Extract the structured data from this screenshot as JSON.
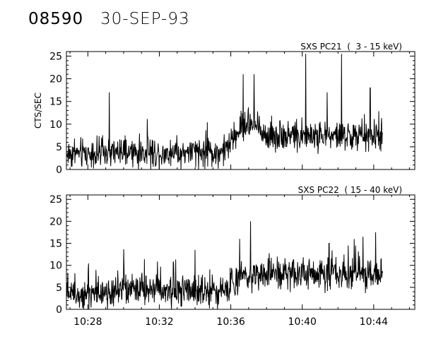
{
  "header": {
    "observation_id": "08590",
    "date": "30-SEP-93"
  },
  "axis_color": "#000000",
  "chart_data": [
    {
      "type": "line",
      "title": "SXS PC21  (  3 - 15 keV)",
      "ylabel": "CTS/SEC",
      "ylim": [
        0,
        26
      ],
      "yticks": [
        "0",
        "5",
        "10",
        "15",
        "20",
        "25"
      ],
      "x_start": "10:26.8",
      "x_end": "10:44.5",
      "xlim": [
        "10:26.8",
        "10:46.3"
      ],
      "xticks": [],
      "grid": false,
      "profile": [
        {
          "t": "10:26.8",
          "level": 3.5
        },
        {
          "t": "10:35.6",
          "level": 3.8
        },
        {
          "t": "10:36.6",
          "level": 9.5
        },
        {
          "t": "10:37.2",
          "level": 10.0
        },
        {
          "t": "10:38.0",
          "level": 7.5
        },
        {
          "t": "10:44.5",
          "level": 7.3
        }
      ],
      "noise": 2.3,
      "spikes": [
        {
          "t": "10:29.2",
          "value": 17
        },
        {
          "t": "10:36.7",
          "value": 21
        },
        {
          "t": "10:37.3",
          "value": 21
        },
        {
          "t": "10:40.2",
          "value": 25.5
        },
        {
          "t": "10:41.4",
          "value": 17
        },
        {
          "t": "10:42.2",
          "value": 25.5
        },
        {
          "t": "10:43.8",
          "value": 18
        }
      ]
    },
    {
      "type": "line",
      "title": "SXS PC22  ( 15 - 40 keV)",
      "ylabel": "",
      "ylim": [
        0,
        26
      ],
      "yticks": [
        "0",
        "5",
        "10",
        "15",
        "20",
        "25"
      ],
      "x_start": "10:26.8",
      "x_end": "10:44.5",
      "xlim": [
        "10:26.8",
        "10:46.3"
      ],
      "xticks": [
        "10:28",
        "10:32",
        "10:36",
        "10:40",
        "10:44"
      ],
      "grid": false,
      "profile": [
        {
          "t": "10:26.8",
          "level": 4.0
        },
        {
          "t": "10:35.8",
          "level": 4.5
        },
        {
          "t": "10:36.7",
          "level": 8.0
        },
        {
          "t": "10:44.5",
          "level": 8.2
        }
      ],
      "noise": 2.6,
      "spikes": [
        {
          "t": "10:36.5",
          "value": 16
        },
        {
          "t": "10:37.1",
          "value": 20
        },
        {
          "t": "10:41.5",
          "value": 15
        },
        {
          "t": "10:43.4",
          "value": 16.5
        },
        {
          "t": "10:44.1",
          "value": 17.5
        }
      ]
    }
  ]
}
